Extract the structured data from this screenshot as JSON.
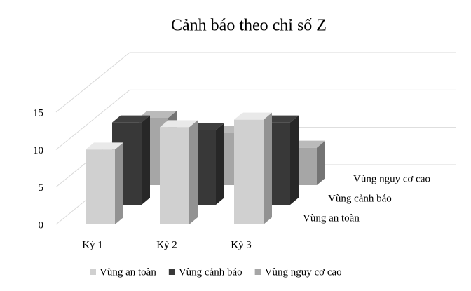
{
  "chart_data": {
    "type": "bar3d",
    "title": "Cảnh báo theo chỉ số Z",
    "categories": [
      "Kỳ 1",
      "Kỳ 2",
      "Kỳ 3"
    ],
    "series": [
      {
        "name": "Vùng an toàn",
        "color": "#d0d0d0",
        "values": [
          10,
          13,
          14
        ]
      },
      {
        "name": "Vùng cảnh báo",
        "color": "#383838",
        "values": [
          11,
          10,
          11
        ]
      },
      {
        "name": "Vùng nguy cơ cao",
        "color": "#a6a6a6",
        "values": [
          9,
          7,
          5
        ]
      }
    ],
    "ylim": [
      0,
      15
    ],
    "yticks": [
      0,
      5,
      10,
      15
    ],
    "grid": true,
    "legend": "bottom"
  }
}
